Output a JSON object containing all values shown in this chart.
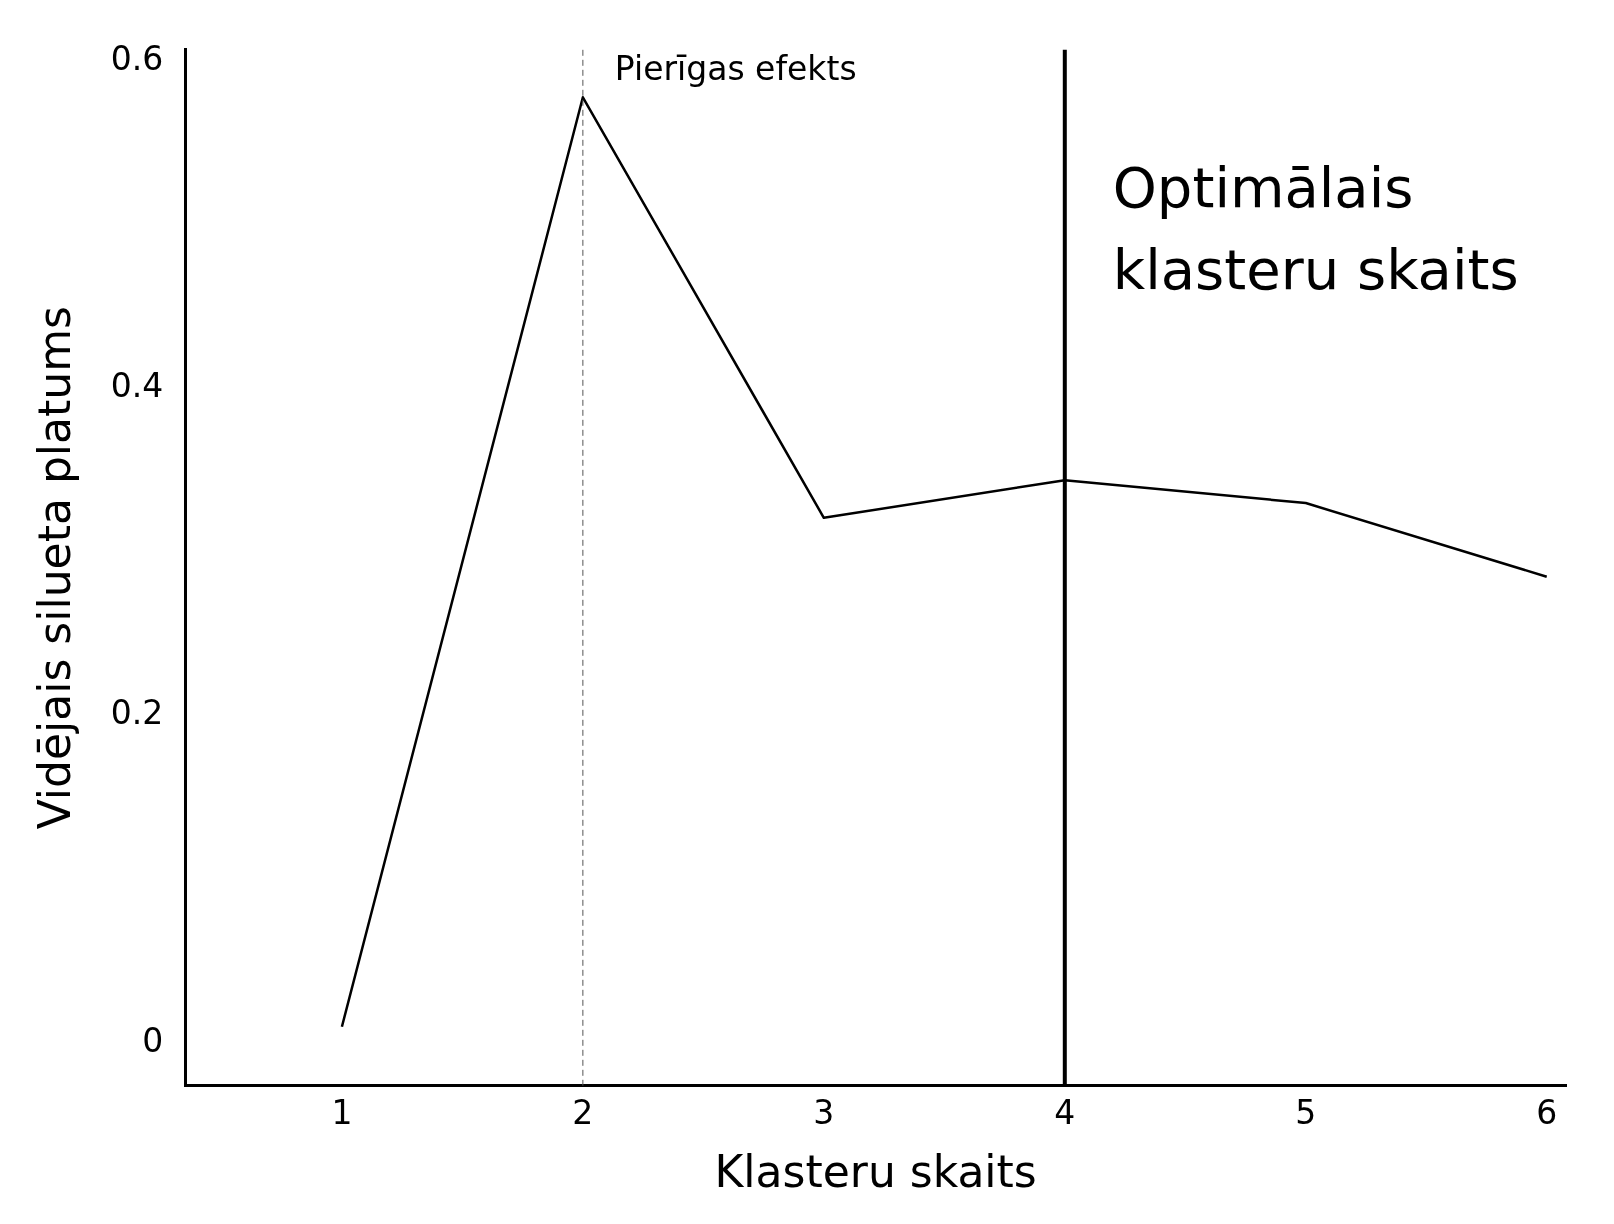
{
  "chart_data": {
    "type": "line",
    "xlabel": "Klasteru skaits",
    "ylabel": "Vidējais silueta platums",
    "x": [
      1,
      2,
      3,
      4,
      5,
      6
    ],
    "series": [
      {
        "color": "#000000",
        "values": [
          0.01,
          0.578,
          0.321,
          0.344,
          0.33,
          0.285
        ]
      }
    ],
    "xlim": [
      0.35,
      6.08
    ],
    "xticks": [
      1,
      2,
      3,
      4,
      5,
      6
    ],
    "ylim": [
      -0.026,
      0.607
    ],
    "yticks": [
      0,
      0.2,
      0.4,
      0.6
    ],
    "grid": false,
    "legend": false,
    "marker": "none",
    "line_style": "solid",
    "ref_lines": [
      {
        "axis": "x",
        "value": 2,
        "label": "Pierīgas efekts",
        "line_style": "dashed",
        "color": "#555555"
      },
      {
        "axis": "x",
        "value": 4,
        "label": "Optimālais klasteru skaits",
        "line_style": "solid",
        "color": "#000000"
      }
    ]
  }
}
